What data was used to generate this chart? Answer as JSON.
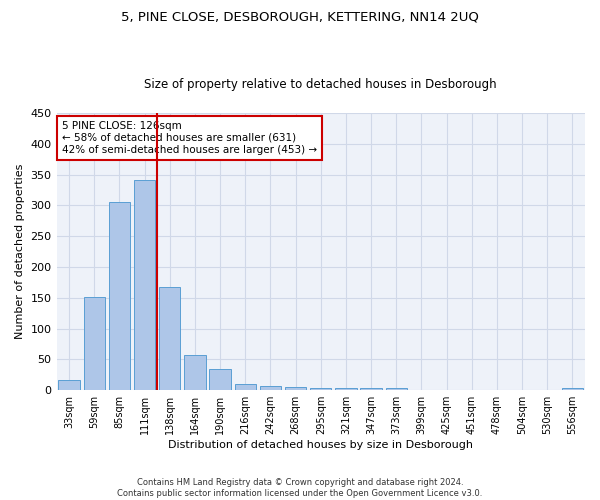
{
  "title": "5, PINE CLOSE, DESBOROUGH, KETTERING, NN14 2UQ",
  "subtitle": "Size of property relative to detached houses in Desborough",
  "xlabel": "Distribution of detached houses by size in Desborough",
  "ylabel": "Number of detached properties",
  "bar_labels": [
    "33sqm",
    "59sqm",
    "85sqm",
    "111sqm",
    "138sqm",
    "164sqm",
    "190sqm",
    "216sqm",
    "242sqm",
    "268sqm",
    "295sqm",
    "321sqm",
    "347sqm",
    "373sqm",
    "399sqm",
    "425sqm",
    "451sqm",
    "478sqm",
    "504sqm",
    "530sqm",
    "556sqm"
  ],
  "bar_values": [
    17,
    152,
    305,
    341,
    167,
    57,
    35,
    10,
    7,
    5,
    4,
    3,
    4,
    3,
    0,
    0,
    0,
    0,
    0,
    0,
    4
  ],
  "bar_color": "#aec6e8",
  "bar_edge_color": "#5a9fd4",
  "grid_color": "#d0d8e8",
  "background_color": "#eef2f9",
  "vline_x": 3.5,
  "vline_color": "#cc0000",
  "annotation_text": "5 PINE CLOSE: 126sqm\n← 58% of detached houses are smaller (631)\n42% of semi-detached houses are larger (453) →",
  "annotation_box_color": "#cc0000",
  "ylim": [
    0,
    450
  ],
  "yticks": [
    0,
    50,
    100,
    150,
    200,
    250,
    300,
    350,
    400,
    450
  ],
  "footer_line1": "Contains HM Land Registry data © Crown copyright and database right 2024.",
  "footer_line2": "Contains public sector information licensed under the Open Government Licence v3.0."
}
